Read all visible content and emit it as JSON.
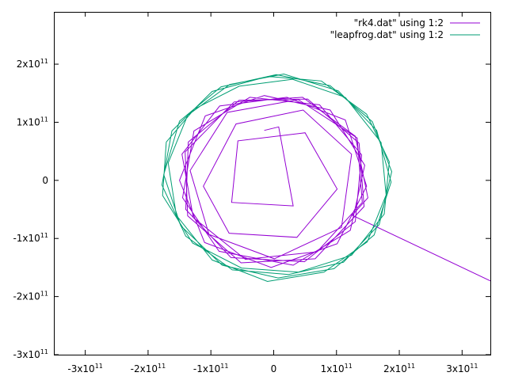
{
  "chart_data": {
    "type": "line",
    "title": "",
    "xlabel": "",
    "ylabel": "",
    "xlim": [
      -350000000000.0,
      345000000000.0
    ],
    "ylim": [
      -300000000000.0,
      290000000000.0
    ],
    "grid": false,
    "legend_position": "top-right",
    "x_ticks": [
      {
        "value": -300000000000.0,
        "mantissa": "-3x10",
        "exp": "11"
      },
      {
        "value": -200000000000.0,
        "mantissa": "-2x10",
        "exp": "11"
      },
      {
        "value": -100000000000.0,
        "mantissa": "-1x10",
        "exp": "11"
      },
      {
        "value": 0,
        "mantissa": "0",
        "exp": ""
      },
      {
        "value": 100000000000.0,
        "mantissa": "1x10",
        "exp": "11"
      },
      {
        "value": 200000000000.0,
        "mantissa": "2x10",
        "exp": "11"
      },
      {
        "value": 300000000000.0,
        "mantissa": "3x10",
        "exp": "11"
      }
    ],
    "y_ticks": [
      {
        "value": 200000000000.0,
        "mantissa": "2x10",
        "exp": "11"
      },
      {
        "value": 100000000000.0,
        "mantissa": "1x10",
        "exp": "11"
      },
      {
        "value": 0,
        "mantissa": "0",
        "exp": ""
      },
      {
        "value": -100000000000.0,
        "mantissa": "-1x10",
        "exp": "11"
      },
      {
        "value": -200000000000.0,
        "mantissa": "-2x10",
        "exp": "11"
      },
      {
        "value": -300000000000.0,
        "mantissa": "-3x10",
        "exp": "11"
      }
    ],
    "series": [
      {
        "name": "\"rk4.dat\" using 1:2",
        "color": "#9400d3",
        "points": [
          [
            -15000000000.0,
            86000000000.0
          ],
          [
            8000000000.0,
            92000000000.0
          ],
          [
            31000000000.0,
            -44000000000.0
          ],
          [
            -67000000000.0,
            -38000000000.0
          ],
          [
            -57000000000.0,
            68000000000.0
          ],
          [
            50000000000.0,
            82000000000.0
          ],
          [
            101000000000.0,
            -15000000000.0
          ],
          [
            37000000000.0,
            -98000000000.0
          ],
          [
            -71000000000.0,
            -91000000000.0
          ],
          [
            -112000000000.0,
            -10000000000.0
          ],
          [
            -60000000000.0,
            97000000000.0
          ],
          [
            47000000000.0,
            121000000000.0
          ],
          [
            124000000000.0,
            45000000000.0
          ],
          [
            108000000000.0,
            -81000000000.0
          ],
          [
            1000000000.0,
            -135000000000.0
          ],
          [
            -103000000000.0,
            -93000000000.0
          ],
          [
            -133000000000.0,
            17000000000.0
          ],
          [
            -74000000000.0,
            117000000000.0
          ],
          [
            39000000000.0,
            139000000000.0
          ],
          [
            133000000000.0,
            73000000000.0
          ],
          [
            141000000000.0,
            -38000000000.0
          ],
          [
            69000000000.0,
            -123000000000.0
          ],
          [
            -45000000000.0,
            -136000000000.0
          ],
          [
            -128000000000.0,
            -64000000000.0
          ],
          [
            -146000000000.0,
            45000000000.0
          ],
          [
            -86000000000.0,
            128000000000.0
          ],
          [
            21000000000.0,
            143000000000.0
          ],
          [
            114000000000.0,
            104000000000.0
          ],
          [
            148000000000.0,
            -10000000000.0
          ],
          [
            101000000000.0,
            -109000000000.0
          ],
          [
            -4000000000.0,
            -150000000000.0
          ],
          [
            -110000000000.0,
            -107000000000.0
          ],
          [
            -150000000000.0,
            0.0
          ],
          [
            -109000000000.0,
            111000000000.0
          ],
          [
            -15000000000.0,
            146000000000.0
          ],
          [
            90000000000.0,
            121000000000.0
          ],
          [
            145000000000.0,
            26000000000.0
          ],
          [
            122000000000.0,
            -86000000000.0
          ],
          [
            31000000000.0,
            -146000000000.0
          ],
          [
            -87000000000.0,
            -122000000000.0
          ],
          [
            -145000000000.0,
            -30000000000.0
          ],
          [
            -127000000000.0,
            85000000000.0
          ],
          [
            -38000000000.0,
            143000000000.0
          ],
          [
            73000000000.0,
            130000000000.0
          ],
          [
            140000000000.0,
            44000000000.0
          ],
          [
            130000000000.0,
            -71000000000.0
          ],
          [
            49000000000.0,
            -140000000000.0
          ],
          [
            -68000000000.0,
            -133000000000.0
          ],
          [
            -140000000000.0,
            -50000000000.0
          ],
          [
            -136000000000.0,
            66000000000.0
          ],
          [
            -55000000000.0,
            138000000000.0
          ],
          [
            54000000000.0,
            140000000000.0
          ],
          [
            136000000000.0,
            64000000000.0
          ],
          [
            144000000000.0,
            -45000000000.0
          ],
          [
            66000000000.0,
            -135000000000.0
          ],
          [
            -52000000000.0,
            -142000000000.0
          ],
          [
            -137000000000.0,
            -61000000000.0
          ],
          [
            -141000000000.0,
            49000000000.0
          ],
          [
            -63000000000.0,
            135000000000.0
          ],
          [
            46000000000.0,
            143000000000.0
          ],
          [
            130000000000.0,
            76000000000.0
          ],
          [
            150000000000.0,
            -30000000000.0
          ],
          [
            125000000000.0,
            -60000000000.0
          ],
          [
            345000000000.0,
            -173000000000.0
          ]
        ]
      },
      {
        "name": "\"leapfrog.dat\" using 1:2",
        "color": "#009e73",
        "points": [
          [
            -171000000000.0,
            66000000000.0
          ],
          [
            -126000000000.0,
            123000000000.0
          ],
          [
            -55000000000.0,
            162000000000.0
          ],
          [
            30000000000.0,
            174000000000.0
          ],
          [
            114000000000.0,
            143000000000.0
          ],
          [
            171000000000.0,
            65000000000.0
          ],
          [
            179000000000.0,
            -25000000000.0
          ],
          [
            149000000000.0,
            -106000000000.0
          ],
          [
            80000000000.0,
            -158000000000.0
          ],
          [
            -10000000000.0,
            -174000000000.0
          ],
          [
            -98000000000.0,
            -137000000000.0
          ],
          [
            -155000000000.0,
            -60000000000.0
          ],
          [
            -168000000000.0,
            30000000000.0
          ],
          [
            -137000000000.0,
            112000000000.0
          ],
          [
            -70000000000.0,
            165000000000.0
          ],
          [
            16000000000.0,
            183000000000.0
          ],
          [
            103000000000.0,
            154000000000.0
          ],
          [
            164000000000.0,
            86000000000.0
          ],
          [
            187000000000.0,
            -3000000000.0
          ],
          [
            160000000000.0,
            -94000000000.0
          ],
          [
            96000000000.0,
            -152000000000.0
          ],
          [
            7000000000.0,
            -168000000000.0
          ],
          [
            -82000000000.0,
            -146000000000.0
          ],
          [
            -148000000000.0,
            -78000000000.0
          ],
          [
            -175000000000.0,
            10000000000.0
          ],
          [
            -150000000000.0,
            102000000000.0
          ],
          [
            -84000000000.0,
            161000000000.0
          ],
          [
            4000000000.0,
            182000000000.0
          ],
          [
            90000000000.0,
            163000000000.0
          ],
          [
            157000000000.0,
            101000000000.0
          ],
          [
            188000000000.0,
            15000000000.0
          ],
          [
            168000000000.0,
            -76000000000.0
          ],
          [
            111000000000.0,
            -141000000000.0
          ],
          [
            24000000000.0,
            -162000000000.0
          ],
          [
            -66000000000.0,
            -154000000000.0
          ],
          [
            -140000000000.0,
            -96000000000.0
          ],
          [
            -178000000000.0,
            -8000000000.0
          ],
          [
            -162000000000.0,
            85000000000.0
          ],
          [
            -98000000000.0,
            153000000000.0
          ],
          [
            -9000000000.0,
            179000000000.0
          ],
          [
            76000000000.0,
            171000000000.0
          ],
          [
            148000000000.0,
            114000000000.0
          ],
          [
            184000000000.0,
            32000000000.0
          ],
          [
            176000000000.0,
            -58000000000.0
          ],
          [
            124000000000.0,
            -129000000000.0
          ],
          [
            39000000000.0,
            -158000000000.0
          ],
          [
            -51000000000.0,
            -151000000000.0
          ],
          [
            -129000000000.0,
            -108000000000.0
          ],
          [
            -177000000000.0,
            -26000000000.0
          ],
          [
            -171000000000.0,
            66000000000.0
          ]
        ]
      }
    ]
  }
}
